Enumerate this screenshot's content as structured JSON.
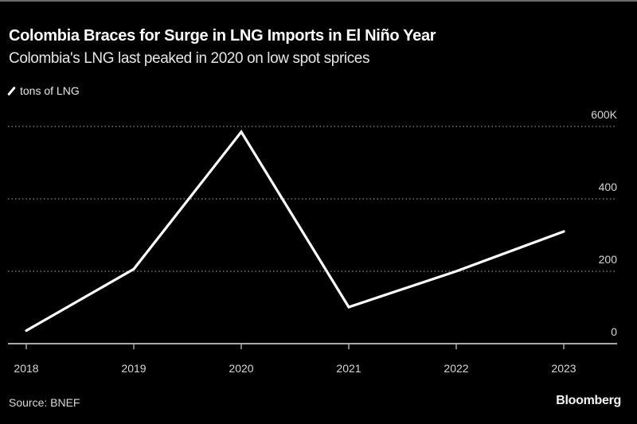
{
  "header": {
    "title": "Colombia Braces for Surge in LNG Imports in El Niño Year",
    "subtitle": "Colombia's LNG last peaked in 2020 on low spot sprices"
  },
  "legend": {
    "label": "tons of LNG",
    "icon": "line-swatch-icon"
  },
  "footer": {
    "source": "Source: BNEF",
    "brand": "Bloomberg"
  },
  "colors": {
    "background": "#000000",
    "line": "#ffffff",
    "grid": "#8a8a8a",
    "text": "#d6d6d6"
  },
  "chart_data": {
    "type": "line",
    "title": "Colombia Braces for Surge in LNG Imports in El Niño Year",
    "subtitle": "Colombia's LNG last peaked in 2020 on low spot sprices",
    "xlabel": "",
    "ylabel": "tons of LNG",
    "categories": [
      "2018",
      "2019",
      "2020",
      "2021",
      "2022",
      "2023"
    ],
    "series": [
      {
        "name": "tons of LNG",
        "values": [
          36000,
          206000,
          585000,
          101000,
          200000,
          310000
        ]
      }
    ],
    "ylim": [
      0,
      600000
    ],
    "yticks": [
      0,
      200000,
      400000,
      600000
    ],
    "ytick_labels": [
      "0",
      "200",
      "400",
      "600K"
    ],
    "y_axis_side": "right",
    "grid": true,
    "grid_style": "dotted",
    "legend_position": "top-left",
    "source": "Source: BNEF"
  }
}
